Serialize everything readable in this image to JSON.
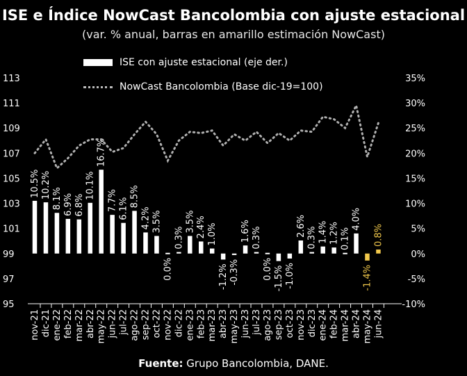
{
  "chart_data": {
    "type": "bar",
    "title": "ISE e Índice NowCast Bancolombia con ajuste estacional",
    "subtitle": "(var. % anual, barras en amarillo estimación NowCast)",
    "categories": [
      "nov-21",
      "dic-21",
      "ene-22",
      "feb-22",
      "mar-22",
      "abr-22",
      "may-22",
      "jun-22",
      "jul-22",
      "ago-22",
      "sep-22",
      "oct-22",
      "nov-22",
      "dic-22",
      "ene-23",
      "feb-23",
      "mar-23",
      "abr-23",
      "may-23",
      "jun-23",
      "jul-23",
      "ago-23",
      "sep-23",
      "oct-23",
      "nov-23",
      "dic-23",
      "ene-24",
      "feb-24",
      "mar-24",
      "abr-24",
      "may-24",
      "jun-24"
    ],
    "series": [
      {
        "name": "ISE con ajuste estacional  (eje der.)",
        "type": "bar",
        "axis": "right",
        "color": "#ffffff",
        "values": [
          10.5,
          10.2,
          8.1,
          6.9,
          6.8,
          10.1,
          16.7,
          7.7,
          6.1,
          8.5,
          4.2,
          3.5,
          0.0,
          0.3,
          3.5,
          2.4,
          1.0,
          -1.2,
          -0.3,
          1.6,
          0.3,
          0.0,
          -1.5,
          -1.0,
          2.6,
          0.3,
          1.4,
          1.2,
          0.1,
          4.0,
          -1.4,
          0.8
        ],
        "data_labels": [
          "10.5%",
          "10.2%",
          "8.1%",
          "6.9%",
          "6.8%",
          "10.1%",
          "16.7%",
          "7.7%",
          "6.1%",
          "8.5%",
          "4.2%",
          "3.5%",
          "0.0%",
          "0.3%",
          "3.5%",
          "2.4%",
          "1.0%",
          "-1.2%",
          "-0.3%",
          "1.6%",
          "0.3%",
          "0.0%",
          "-1.5%",
          "-1.0%",
          "2.6%",
          "0.3%",
          "1.4%",
          "1.2%",
          "0.1%",
          "4.0%",
          "-1.4%",
          "0.8%"
        ],
        "estimate_flags": [
          false,
          false,
          false,
          false,
          false,
          false,
          false,
          false,
          false,
          false,
          false,
          false,
          false,
          false,
          false,
          false,
          false,
          false,
          false,
          false,
          false,
          false,
          false,
          false,
          false,
          false,
          false,
          false,
          false,
          false,
          true,
          true
        ],
        "estimate_color": "#f2c94c"
      },
      {
        "name": "NowCast Bancolombia (Base dic-19=100)",
        "type": "line",
        "style": "dotted",
        "axis": "left",
        "color": "#b0b0b0",
        "values": [
          107.0,
          108.1,
          105.8,
          106.6,
          107.6,
          108.1,
          108.1,
          107.1,
          107.4,
          108.5,
          109.5,
          108.5,
          106.4,
          108.0,
          108.7,
          108.6,
          108.8,
          107.6,
          108.5,
          108.0,
          108.7,
          107.8,
          108.6,
          108.0,
          108.8,
          108.7,
          109.9,
          109.7,
          109.0,
          110.8,
          106.7,
          109.4
        ]
      }
    ],
    "y_left": {
      "ylim": [
        95,
        113
      ],
      "ticks": [
        95,
        97,
        99,
        101,
        103,
        105,
        107,
        109,
        111,
        113
      ],
      "tick_labels": [
        "95",
        "97",
        "99",
        "101",
        "103",
        "105",
        "107",
        "109",
        "111",
        "113"
      ]
    },
    "y_right": {
      "ylim": [
        -10,
        35
      ],
      "ticks": [
        -10,
        -5,
        0,
        5,
        10,
        15,
        20,
        25,
        30,
        35
      ],
      "tick_labels": [
        "-10%",
        "-5%",
        "0%",
        "5%",
        "10%",
        "15%",
        "20%",
        "25%",
        "30%",
        "35%"
      ]
    },
    "grid": false,
    "legend_position": "top-left"
  },
  "source": {
    "label": "Fuente:",
    "text": " Grupo Bancolombia, DANE."
  }
}
